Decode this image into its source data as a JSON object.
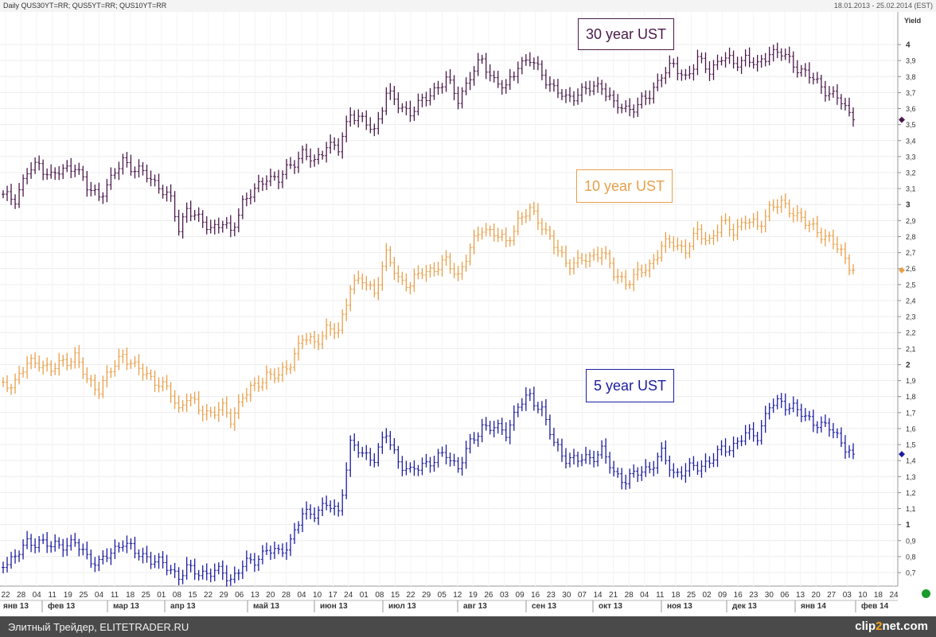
{
  "header": {
    "title": "Daily QUS30YT=RR; QUS5YT=RR; QUS10YT=RR",
    "date_range": "18.01.2013 - 25.02.2014 (EST)"
  },
  "footer": {
    "text": "Элитный Трейдер, ELITETRADER.RU",
    "logo_a": "clip",
    "logo_b": "2",
    "logo_c": "net.com"
  },
  "annotations": {
    "label_30y": "30 year UST",
    "label_10y": "10 year UST",
    "label_5y": "5 year UST"
  },
  "colors": {
    "s30": "#4a1a4a",
    "s10": "#e8a04a",
    "s5": "#1c1ca0",
    "grid": "#ececec",
    "status": "#1a9a2a"
  },
  "chart_data": {
    "type": "line",
    "style": "ohlc-bars",
    "ylabel": "Yield",
    "ylim": [
      0.65,
      4.05
    ],
    "y_tick_labels": [
      "0,7",
      "0,8",
      "0,9",
      "1",
      "1,1",
      "1,2",
      "1,3",
      "1,4",
      "1,5",
      "1,6",
      "1,7",
      "1,8",
      "1,9",
      "2",
      "2,1",
      "2,2",
      "2,3",
      "2,4",
      "2,5",
      "2,6",
      "2,7",
      "2,8",
      "2,9",
      "3",
      "3,1",
      "3,2",
      "3,3",
      "3,4",
      "3,5",
      "3,6",
      "3,7",
      "3,8",
      "3,9",
      "4"
    ],
    "x_day_labels": [
      "22",
      "28",
      "04",
      "11",
      "19",
      "25",
      "04",
      "11",
      "18",
      "25",
      "01",
      "08",
      "15",
      "22",
      "29",
      "06",
      "13",
      "20",
      "28",
      "04",
      "10",
      "17",
      "24",
      "01",
      "08",
      "15",
      "22",
      "29",
      "05",
      "12",
      "19",
      "26",
      "03",
      "09",
      "16",
      "23",
      "30",
      "07",
      "14",
      "21",
      "28",
      "04",
      "11",
      "18",
      "25",
      "02",
      "09",
      "16",
      "23",
      "30",
      "06",
      "13",
      "20",
      "27",
      "03",
      "10",
      "18",
      "24"
    ],
    "x_month_labels": [
      "янв 13",
      "фев 13",
      "мар 13",
      "апр 13",
      "май 13",
      "июн 13",
      "июл 13",
      "авг 13",
      "сен 13",
      "окт 13",
      "ноя 13",
      "дек 13",
      "янв 14",
      "фев 14"
    ],
    "grid": true,
    "series": [
      {
        "name": "QUS30YT=RR",
        "color": "#4a1a4a",
        "last": 3.53,
        "anchors": [
          [
            0,
            3.05
          ],
          [
            3,
            3.04
          ],
          [
            6,
            3.2
          ],
          [
            9,
            3.25
          ],
          [
            12,
            3.18
          ],
          [
            15,
            3.21
          ],
          [
            18,
            3.25
          ],
          [
            21,
            3.1
          ],
          [
            24,
            3.06
          ],
          [
            27,
            3.15
          ],
          [
            30,
            3.28
          ],
          [
            33,
            3.22
          ],
          [
            36,
            3.18
          ],
          [
            39,
            3.12
          ],
          [
            42,
            3.02
          ],
          [
            44,
            2.85
          ],
          [
            46,
            2.98
          ],
          [
            49,
            2.9
          ],
          [
            52,
            2.86
          ],
          [
            55,
            2.88
          ],
          [
            57,
            2.82
          ],
          [
            60,
            3.02
          ],
          [
            63,
            3.08
          ],
          [
            66,
            3.18
          ],
          [
            69,
            3.15
          ],
          [
            72,
            3.25
          ],
          [
            75,
            3.32
          ],
          [
            78,
            3.26
          ],
          [
            81,
            3.38
          ],
          [
            84,
            3.34
          ],
          [
            87,
            3.58
          ],
          [
            90,
            3.52
          ],
          [
            93,
            3.46
          ],
          [
            96,
            3.7
          ],
          [
            99,
            3.62
          ],
          [
            102,
            3.58
          ],
          [
            105,
            3.64
          ],
          [
            108,
            3.72
          ],
          [
            111,
            3.78
          ],
          [
            114,
            3.66
          ],
          [
            117,
            3.8
          ],
          [
            120,
            3.9
          ],
          [
            123,
            3.78
          ],
          [
            126,
            3.72
          ],
          [
            129,
            3.88
          ],
          [
            132,
            3.9
          ],
          [
            135,
            3.82
          ],
          [
            138,
            3.72
          ],
          [
            141,
            3.66
          ],
          [
            144,
            3.7
          ],
          [
            147,
            3.72
          ],
          [
            150,
            3.75
          ],
          [
            153,
            3.62
          ],
          [
            156,
            3.6
          ],
          [
            159,
            3.62
          ],
          [
            162,
            3.68
          ],
          [
            165,
            3.82
          ],
          [
            168,
            3.86
          ],
          [
            171,
            3.8
          ],
          [
            174,
            3.9
          ],
          [
            177,
            3.84
          ],
          [
            180,
            3.92
          ],
          [
            183,
            3.88
          ],
          [
            186,
            3.92
          ],
          [
            189,
            3.86
          ],
          [
            192,
            3.96
          ],
          [
            195,
            3.94
          ],
          [
            198,
            3.88
          ],
          [
            201,
            3.82
          ],
          [
            204,
            3.76
          ],
          [
            207,
            3.7
          ],
          [
            210,
            3.64
          ],
          [
            213,
            3.53
          ]
        ]
      },
      {
        "name": "QUS10YT=RR",
        "color": "#e8a04a",
        "last": 2.59,
        "anchors": [
          [
            0,
            1.86
          ],
          [
            3,
            1.9
          ],
          [
            6,
            2.0
          ],
          [
            9,
            2.02
          ],
          [
            12,
            1.96
          ],
          [
            15,
            2.02
          ],
          [
            18,
            2.05
          ],
          [
            21,
            1.9
          ],
          [
            24,
            1.85
          ],
          [
            27,
            1.96
          ],
          [
            30,
            2.07
          ],
          [
            33,
            1.98
          ],
          [
            36,
            1.94
          ],
          [
            39,
            1.88
          ],
          [
            42,
            1.82
          ],
          [
            44,
            1.72
          ],
          [
            46,
            1.8
          ],
          [
            49,
            1.72
          ],
          [
            52,
            1.7
          ],
          [
            55,
            1.72
          ],
          [
            57,
            1.66
          ],
          [
            60,
            1.8
          ],
          [
            63,
            1.86
          ],
          [
            66,
            1.94
          ],
          [
            69,
            1.92
          ],
          [
            72,
            2.02
          ],
          [
            75,
            2.16
          ],
          [
            78,
            2.14
          ],
          [
            81,
            2.22
          ],
          [
            84,
            2.2
          ],
          [
            87,
            2.5
          ],
          [
            90,
            2.52
          ],
          [
            93,
            2.46
          ],
          [
            96,
            2.68
          ],
          [
            99,
            2.54
          ],
          [
            102,
            2.5
          ],
          [
            105,
            2.58
          ],
          [
            108,
            2.6
          ],
          [
            111,
            2.64
          ],
          [
            114,
            2.56
          ],
          [
            117,
            2.72
          ],
          [
            120,
            2.86
          ],
          [
            123,
            2.82
          ],
          [
            126,
            2.76
          ],
          [
            129,
            2.9
          ],
          [
            132,
            2.96
          ],
          [
            135,
            2.88
          ],
          [
            138,
            2.74
          ],
          [
            141,
            2.64
          ],
          [
            144,
            2.64
          ],
          [
            147,
            2.66
          ],
          [
            150,
            2.72
          ],
          [
            153,
            2.56
          ],
          [
            156,
            2.52
          ],
          [
            159,
            2.56
          ],
          [
            162,
            2.62
          ],
          [
            165,
            2.74
          ],
          [
            168,
            2.76
          ],
          [
            171,
            2.72
          ],
          [
            174,
            2.82
          ],
          [
            177,
            2.78
          ],
          [
            180,
            2.88
          ],
          [
            183,
            2.84
          ],
          [
            186,
            2.9
          ],
          [
            189,
            2.86
          ],
          [
            192,
            2.98
          ],
          [
            195,
            3.0
          ],
          [
            198,
            2.96
          ],
          [
            201,
            2.88
          ],
          [
            204,
            2.84
          ],
          [
            207,
            2.78
          ],
          [
            210,
            2.7
          ],
          [
            213,
            2.59
          ]
        ]
      },
      {
        "name": "QUS5YT=RR",
        "color": "#1c1ca0",
        "last": 1.44,
        "anchors": [
          [
            0,
            0.76
          ],
          [
            3,
            0.8
          ],
          [
            6,
            0.88
          ],
          [
            9,
            0.9
          ],
          [
            12,
            0.86
          ],
          [
            15,
            0.88
          ],
          [
            18,
            0.88
          ],
          [
            21,
            0.8
          ],
          [
            24,
            0.76
          ],
          [
            27,
            0.82
          ],
          [
            30,
            0.9
          ],
          [
            33,
            0.82
          ],
          [
            36,
            0.8
          ],
          [
            39,
            0.76
          ],
          [
            42,
            0.72
          ],
          [
            44,
            0.68
          ],
          [
            46,
            0.72
          ],
          [
            49,
            0.7
          ],
          [
            52,
            0.7
          ],
          [
            55,
            0.7
          ],
          [
            57,
            0.66
          ],
          [
            60,
            0.74
          ],
          [
            63,
            0.78
          ],
          [
            66,
            0.84
          ],
          [
            69,
            0.82
          ],
          [
            72,
            0.9
          ],
          [
            75,
            1.06
          ],
          [
            78,
            1.08
          ],
          [
            81,
            1.12
          ],
          [
            84,
            1.08
          ],
          [
            87,
            1.5
          ],
          [
            90,
            1.44
          ],
          [
            93,
            1.42
          ],
          [
            96,
            1.56
          ],
          [
            99,
            1.4
          ],
          [
            102,
            1.32
          ],
          [
            105,
            1.38
          ],
          [
            108,
            1.4
          ],
          [
            111,
            1.44
          ],
          [
            114,
            1.36
          ],
          [
            117,
            1.5
          ],
          [
            120,
            1.62
          ],
          [
            123,
            1.6
          ],
          [
            126,
            1.58
          ],
          [
            129,
            1.74
          ],
          [
            132,
            1.8
          ],
          [
            135,
            1.72
          ],
          [
            138,
            1.5
          ],
          [
            141,
            1.42
          ],
          [
            144,
            1.4
          ],
          [
            147,
            1.42
          ],
          [
            150,
            1.46
          ],
          [
            153,
            1.32
          ],
          [
            156,
            1.28
          ],
          [
            159,
            1.32
          ],
          [
            162,
            1.36
          ],
          [
            165,
            1.44
          ],
          [
            168,
            1.32
          ],
          [
            171,
            1.34
          ],
          [
            174,
            1.36
          ],
          [
            177,
            1.4
          ],
          [
            180,
            1.46
          ],
          [
            183,
            1.5
          ],
          [
            186,
            1.56
          ],
          [
            189,
            1.56
          ],
          [
            192,
            1.74
          ],
          [
            195,
            1.76
          ],
          [
            198,
            1.74
          ],
          [
            201,
            1.66
          ],
          [
            204,
            1.64
          ],
          [
            207,
            1.6
          ],
          [
            210,
            1.52
          ],
          [
            213,
            1.44
          ]
        ]
      }
    ]
  }
}
